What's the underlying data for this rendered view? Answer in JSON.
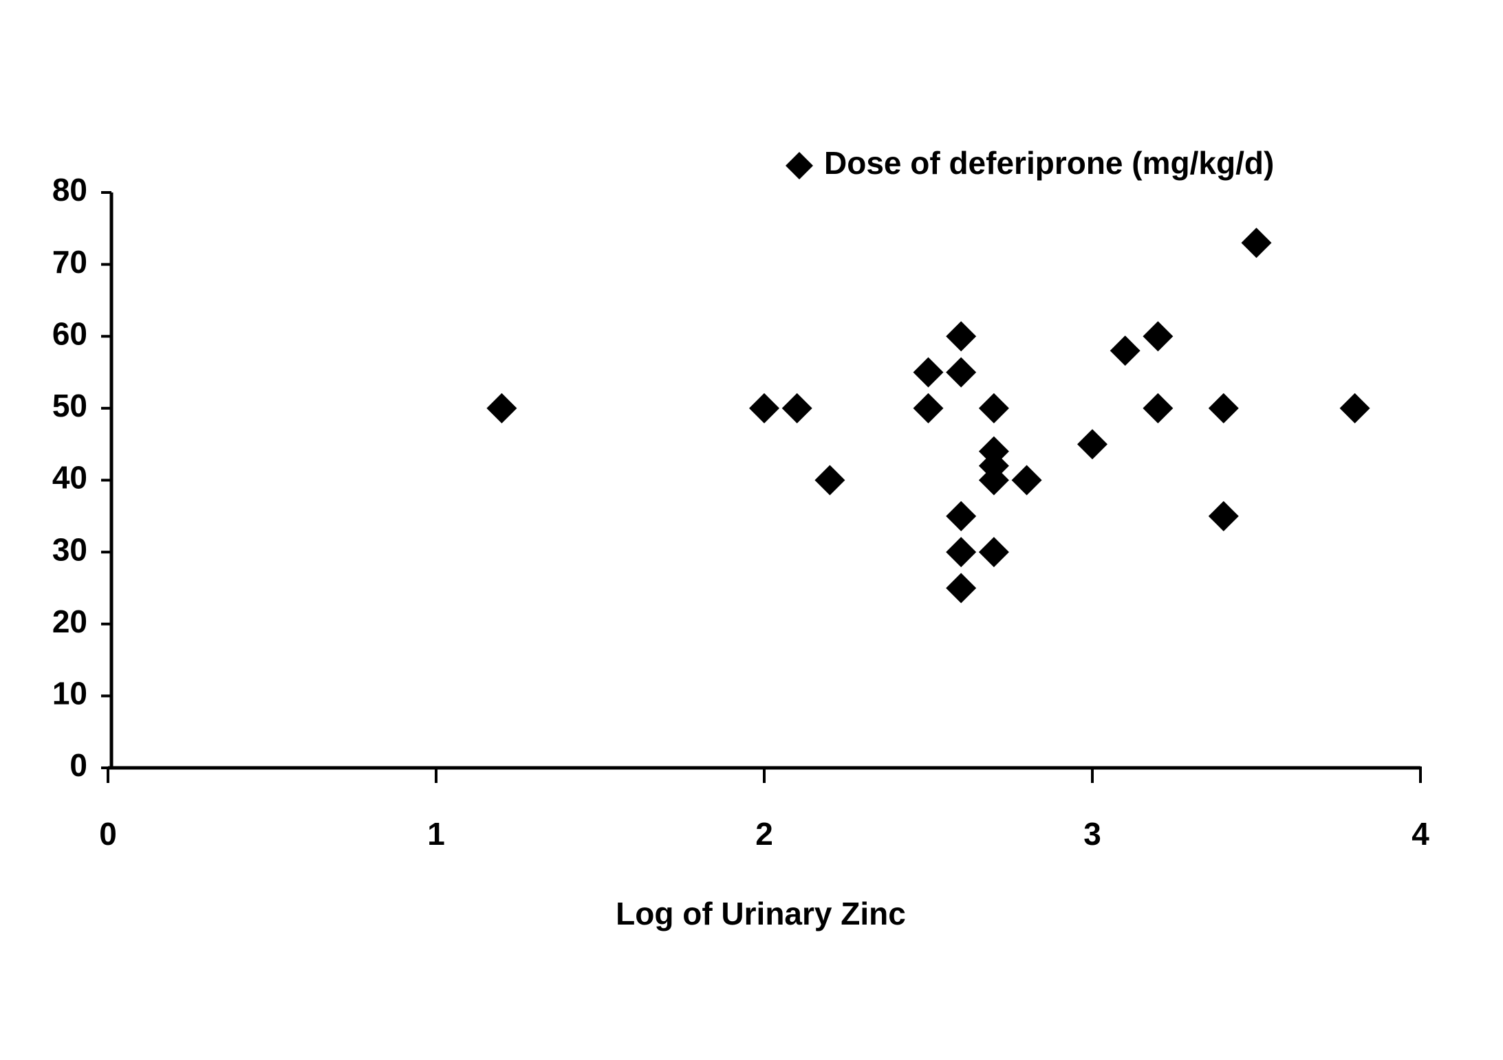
{
  "chart_data": {
    "type": "scatter",
    "x_label": "Log of Urinary Zinc",
    "series": [
      {
        "name": "Dose of deferiprone (mg/kg/d)",
        "color": "#000000",
        "x": [
          1.2,
          2.0,
          2.1,
          2.2,
          2.5,
          2.5,
          2.6,
          2.6,
          2.6,
          2.6,
          2.6,
          2.7,
          2.7,
          2.7,
          2.7,
          2.7,
          2.8,
          3.0,
          3.1,
          3.2,
          3.2,
          3.4,
          3.4,
          3.5,
          3.8
        ],
        "values": [
          50,
          50,
          50,
          40,
          55,
          50,
          60,
          55,
          35,
          30,
          25,
          50,
          44,
          42,
          40,
          30,
          40,
          45,
          58,
          60,
          50,
          50,
          35,
          73,
          50
        ]
      }
    ],
    "xlim": [
      0,
      4
    ],
    "xticks": [
      0,
      1,
      2,
      3,
      4
    ],
    "ylim": [
      0,
      80
    ],
    "yticks": [
      0,
      10,
      20,
      30,
      40,
      50,
      60,
      70,
      80
    ],
    "legend": "top-right"
  }
}
